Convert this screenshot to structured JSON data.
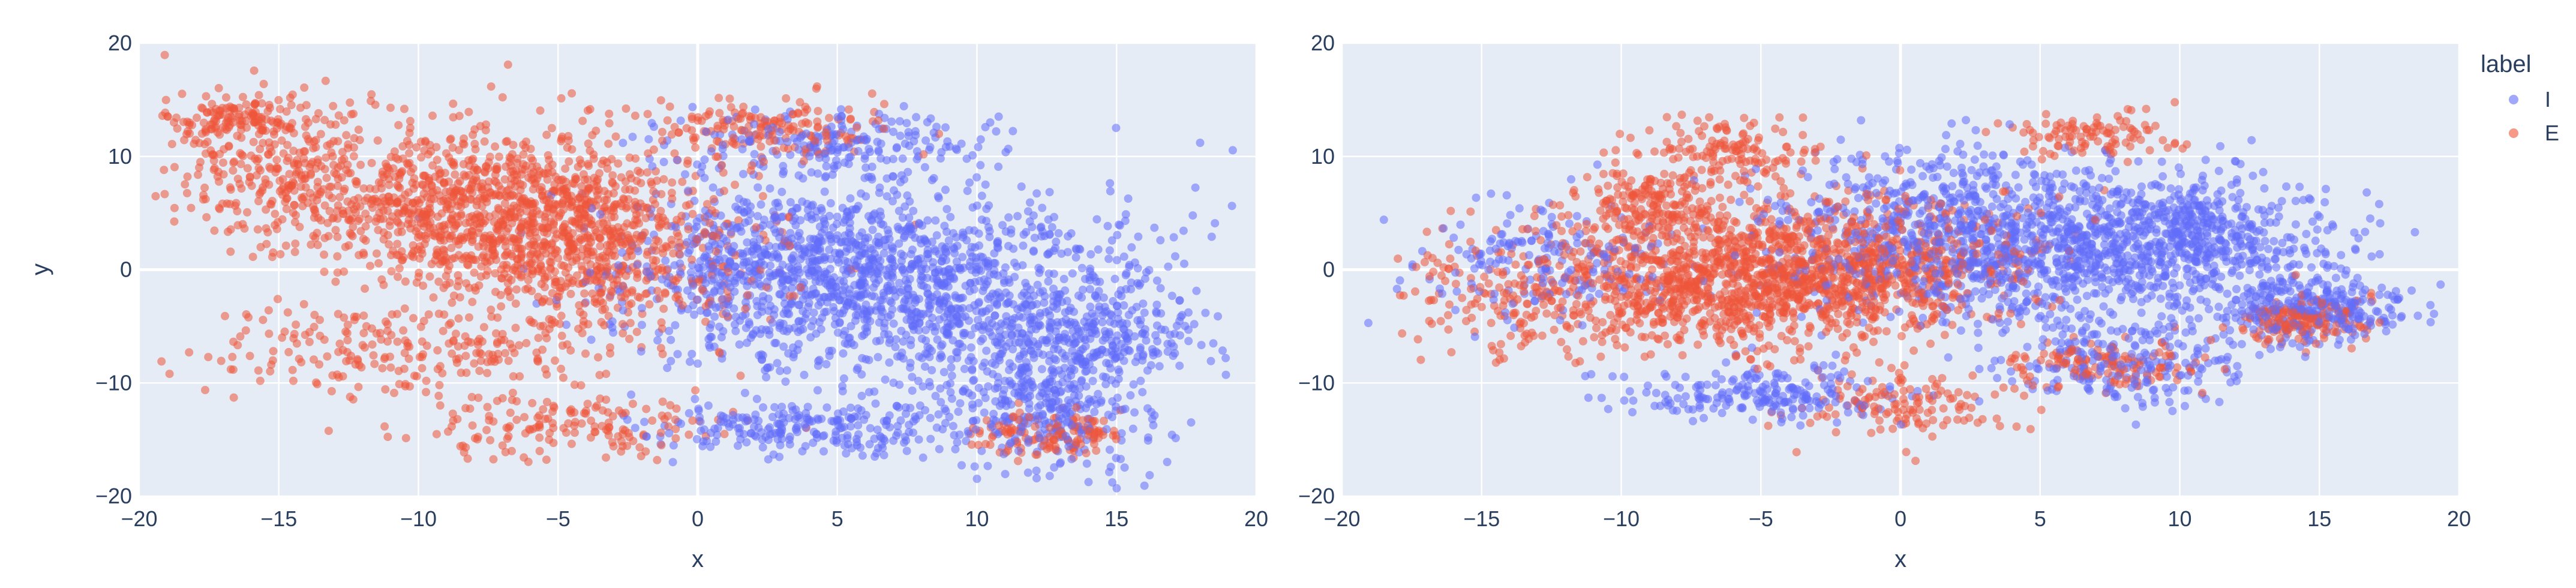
{
  "chart_data": [
    {
      "type": "scatter",
      "xlabel": "x",
      "ylabel": "y",
      "xlim": [
        -20,
        20
      ],
      "ylim": [
        -20,
        20
      ],
      "xticks": [
        "−20",
        "−15",
        "−10",
        "−5",
        "0",
        "5",
        "10",
        "15",
        "20"
      ],
      "yticks": [
        "20",
        "10",
        "0",
        "−10",
        "−20"
      ],
      "grid": true,
      "series": [
        {
          "name": "I",
          "color": "#636efa",
          "clusters": [
            {
              "cx": 8,
              "cy": -2,
              "sx": 4.5,
              "sy": 4.5,
              "w": 0.45
            },
            {
              "cx": 3,
              "cy": 1,
              "sx": 3,
              "sy": 3.5,
              "w": 0.18
            },
            {
              "cx": 12.5,
              "cy": -12,
              "sx": 1.8,
              "sy": 3,
              "w": 0.12
            },
            {
              "cx": 5,
              "cy": 11,
              "sx": 3,
              "sy": 1.5,
              "w": 0.08
            },
            {
              "cx": 14,
              "cy": -6,
              "sx": 2,
              "sy": 2,
              "w": 0.08
            },
            {
              "cx": 4,
              "cy": -14,
              "sx": 3,
              "sy": 1.2,
              "w": 0.09
            }
          ]
        },
        {
          "name": "E",
          "color": "#ef553b",
          "clusters": [
            {
              "cx": -8,
              "cy": 6,
              "sx": 4,
              "sy": 3.2,
              "w": 0.4
            },
            {
              "cx": -4,
              "cy": 1,
              "sx": 3,
              "sy": 3.2,
              "w": 0.22
            },
            {
              "cx": -15.5,
              "cy": 10,
              "sx": 2,
              "sy": 3,
              "w": 0.08
            },
            {
              "cx": -16.5,
              "cy": 13.5,
              "sx": 1.2,
              "sy": 0.8,
              "w": 0.04
            },
            {
              "cx": 2.5,
              "cy": 12.5,
              "sx": 2,
              "sy": 1.3,
              "w": 0.06
            },
            {
              "cx": -5,
              "cy": -14,
              "sx": 3,
              "sy": 1.5,
              "w": 0.06
            },
            {
              "cx": 12.5,
              "cy": -14.5,
              "sx": 1.5,
              "sy": 1,
              "w": 0.05
            },
            {
              "cx": -10,
              "cy": -7,
              "sx": 4,
              "sy": 2,
              "w": 0.09
            }
          ]
        }
      ]
    },
    {
      "type": "scatter",
      "xlabel": "x",
      "ylabel": "",
      "xlim": [
        -20,
        20
      ],
      "ylim": [
        -20,
        20
      ],
      "xticks": [
        "−20",
        "−15",
        "−10",
        "−5",
        "0",
        "5",
        "10",
        "15",
        "20"
      ],
      "yticks": [
        "20",
        "10",
        "0",
        "−10",
        "−20"
      ],
      "grid": true,
      "series": [
        {
          "name": "I",
          "color": "#636efa",
          "clusters": [
            {
              "cx": 6,
              "cy": 2,
              "sx": 4,
              "sy": 3.5,
              "w": 0.4
            },
            {
              "cx": 1,
              "cy": 4,
              "sx": 3,
              "sy": 3.5,
              "w": 0.15
            },
            {
              "cx": 14.5,
              "cy": -3.5,
              "sx": 1.8,
              "sy": 1.5,
              "w": 0.12
            },
            {
              "cx": 11,
              "cy": 3,
              "sx": 2,
              "sy": 2,
              "w": 0.1
            },
            {
              "cx": -5,
              "cy": -11,
              "sx": 2.5,
              "sy": 1.2,
              "w": 0.08
            },
            {
              "cx": 8,
              "cy": -8,
              "sx": 2,
              "sy": 2,
              "w": 0.08
            },
            {
              "cx": -13,
              "cy": 1,
              "sx": 2.5,
              "sy": 2.5,
              "w": 0.07
            }
          ]
        },
        {
          "name": "E",
          "color": "#ef553b",
          "clusters": [
            {
              "cx": -6,
              "cy": -1,
              "sx": 3.8,
              "sy": 3,
              "w": 0.45
            },
            {
              "cx": -1,
              "cy": 1,
              "sx": 3,
              "sy": 3,
              "w": 0.18
            },
            {
              "cx": -9,
              "cy": 6,
              "sx": 1.5,
              "sy": 2,
              "w": 0.07
            },
            {
              "cx": -6,
              "cy": 10.5,
              "sx": 1.5,
              "sy": 1.5,
              "w": 0.05
            },
            {
              "cx": 7.5,
              "cy": -8.5,
              "sx": 1.5,
              "sy": 1,
              "w": 0.05
            },
            {
              "cx": 0,
              "cy": -12,
              "sx": 2,
              "sy": 1.5,
              "w": 0.05
            },
            {
              "cx": 14.5,
              "cy": -4.5,
              "sx": 1.2,
              "sy": 1,
              "w": 0.06
            },
            {
              "cx": 7,
              "cy": 12,
              "sx": 1.5,
              "sy": 1,
              "w": 0.04
            },
            {
              "cx": -14,
              "cy": -3,
              "sx": 2,
              "sy": 2.5,
              "w": 0.05
            }
          ]
        }
      ]
    }
  ],
  "legend": {
    "title": "label",
    "items": [
      {
        "label": "I",
        "color": "#636efa"
      },
      {
        "label": "E",
        "color": "#ef553b"
      }
    ],
    "position": "top-right"
  },
  "colors": {
    "plot_bg": "#e5ecf6",
    "grid": "#ffffff",
    "text": "#2a3f5f"
  }
}
